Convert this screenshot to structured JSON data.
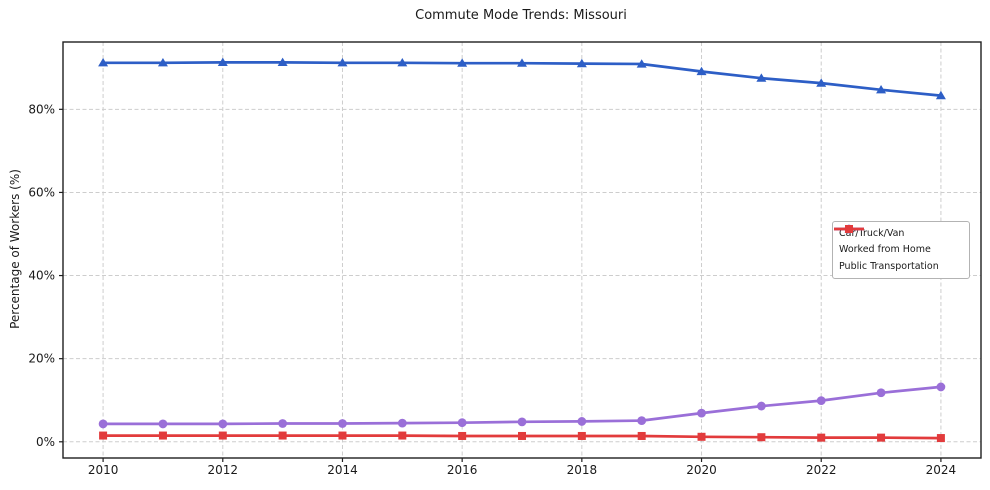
{
  "figure": {
    "background": "#ffffff",
    "frame_color": "#1f1f1f",
    "grid_color": "#cdcdcd",
    "tick_label_color": "#1a1a1a"
  },
  "chart_data": {
    "type": "line",
    "title": "Commute Mode Trends: Missouri",
    "xlabel": "",
    "ylabel": "Percentage of Workers (%)",
    "x": [
      2010,
      2011,
      2012,
      2013,
      2014,
      2015,
      2016,
      2017,
      2018,
      2019,
      2020,
      2021,
      2022,
      2023,
      2024
    ],
    "xticks": [
      2010,
      2012,
      2014,
      2016,
      2018,
      2020,
      2022,
      2024
    ],
    "yticks": [
      0,
      20,
      40,
      60,
      80
    ],
    "ytick_labels": [
      "0%",
      "20%",
      "40%",
      "60%",
      "80%"
    ],
    "xlim": [
      2009.33,
      2024.67
    ],
    "ylim": [
      -3.9,
      96.2
    ],
    "grid": true,
    "grid_style": "dashed",
    "legend_position": "center-right",
    "series": [
      {
        "name": "Car/Truck/Van",
        "color": "#2d5ec6",
        "marker": "triangle",
        "values": [
          91.2,
          91.2,
          91.3,
          91.3,
          91.2,
          91.2,
          91.1,
          91.1,
          91.0,
          90.9,
          89.1,
          87.5,
          86.3,
          84.7,
          83.3
        ]
      },
      {
        "name": "Worked from Home",
        "color": "#9a6fd8",
        "marker": "circle",
        "values": [
          4.3,
          4.3,
          4.3,
          4.4,
          4.4,
          4.5,
          4.6,
          4.8,
          4.9,
          5.1,
          6.9,
          8.6,
          9.9,
          11.8,
          13.2
        ]
      },
      {
        "name": "Public Transportation",
        "color": "#e23b3c",
        "marker": "square",
        "values": [
          1.5,
          1.5,
          1.5,
          1.5,
          1.5,
          1.5,
          1.4,
          1.4,
          1.4,
          1.4,
          1.2,
          1.1,
          1.0,
          1.0,
          0.9
        ]
      }
    ]
  }
}
